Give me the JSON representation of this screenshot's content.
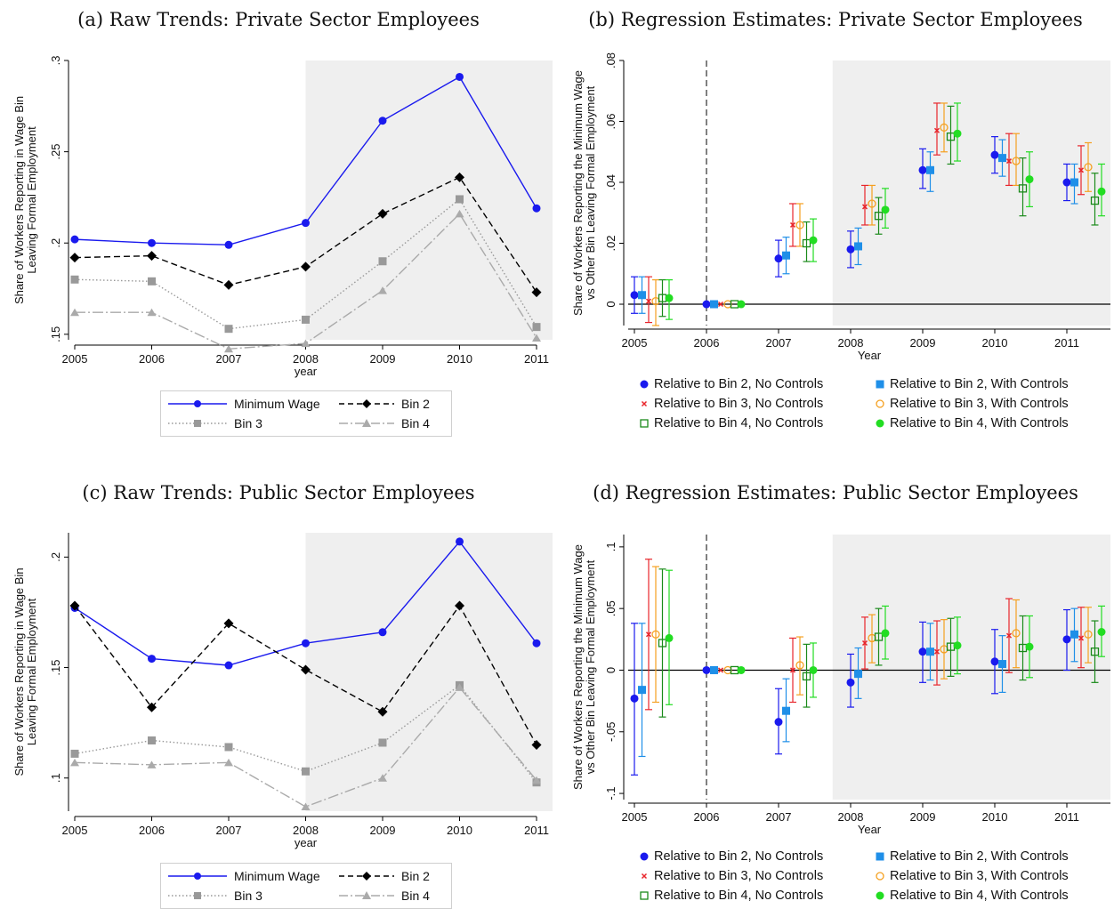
{
  "chart_data": [
    {
      "id": "a",
      "type": "line",
      "title": "(a) Raw Trends: Private Sector Employees",
      "xlabel": "year",
      "ylabel": "Share of Workers Reporting in Wage Bin\nLeaving Formal Employment",
      "x": [
        2005,
        2006,
        2007,
        2008,
        2009,
        2010,
        2011
      ],
      "xlim": [
        2005,
        2011
      ],
      "ylim": [
        0.147,
        0.3
      ],
      "yticks": [
        0.15,
        0.2,
        0.25,
        0.3
      ],
      "ytick_labels": [
        ".15",
        ".2",
        ".25",
        ".3"
      ],
      "shaded_from": 2008,
      "series": [
        {
          "name": "Minimum Wage",
          "color": "#1a1aee",
          "marker": "circle",
          "dash": "solid",
          "values": [
            0.202,
            0.2,
            0.199,
            0.211,
            0.267,
            0.291,
            0.219
          ]
        },
        {
          "name": "Bin 2",
          "color": "#000000",
          "marker": "diamond",
          "dash": "dashed",
          "values": [
            0.192,
            0.193,
            0.177,
            0.187,
            0.216,
            0.236,
            0.173
          ]
        },
        {
          "name": "Bin 3",
          "color": "#999999",
          "marker": "square",
          "dash": "dotted",
          "values": [
            0.18,
            0.179,
            0.153,
            0.158,
            0.19,
            0.224,
            0.154
          ]
        },
        {
          "name": "Bin 4",
          "color": "#aaaaaa",
          "marker": "triangle",
          "dash": "longdash",
          "values": [
            0.162,
            0.162,
            0.142,
            0.145,
            0.174,
            0.216,
            0.148
          ]
        }
      ]
    },
    {
      "id": "b",
      "type": "scatter",
      "title": "(b) Regression Estimates: Private Sector Employees",
      "xlabel": "Year",
      "ylabel": "Share of Workers Reporting the Minimum Wage\nvs Other Bin Leaving Formal Employment",
      "x": [
        2005,
        2006,
        2007,
        2008,
        2009,
        2010,
        2011
      ],
      "ylim": [
        -0.007,
        0.08
      ],
      "yticks": [
        0,
        0.02,
        0.04,
        0.06,
        0.08
      ],
      "ytick_labels": [
        "0",
        ".02",
        ".04",
        ".06",
        ".08"
      ],
      "event_line": 2006,
      "shaded_from": 2007.75,
      "series": [
        {
          "name": "Relative to Bin 2, No Controls",
          "color": "#1a1aee",
          "marker": "circle",
          "values": [
            0.003,
            0,
            0.015,
            0.018,
            0.044,
            0.049,
            0.04
          ],
          "ci_low": [
            -0.003,
            0,
            0.009,
            0.012,
            0.038,
            0.043,
            0.034
          ],
          "ci_high": [
            0.009,
            0,
            0.021,
            0.024,
            0.051,
            0.055,
            0.046
          ]
        },
        {
          "name": "Relative to Bin 2, With Controls",
          "color": "#1f8fe8",
          "marker": "square",
          "values": [
            0.003,
            0,
            0.016,
            0.019,
            0.044,
            0.048,
            0.04
          ],
          "ci_low": [
            -0.003,
            0,
            0.01,
            0.013,
            0.037,
            0.042,
            0.033
          ],
          "ci_high": [
            0.009,
            0,
            0.022,
            0.025,
            0.05,
            0.054,
            0.046
          ]
        },
        {
          "name": "Relative to Bin 3, No Controls",
          "color": "#e8252b",
          "marker": "x",
          "values": [
            0.001,
            0,
            0.026,
            0.032,
            0.057,
            0.047,
            0.044
          ],
          "ci_low": [
            -0.006,
            0,
            0.019,
            0.026,
            0.049,
            0.039,
            0.036
          ],
          "ci_high": [
            0.009,
            0,
            0.033,
            0.039,
            0.066,
            0.056,
            0.052
          ]
        },
        {
          "name": "Relative to Bin 3, With Controls",
          "color": "#f5a020",
          "marker": "circle-open",
          "values": [
            0.001,
            0,
            0.026,
            0.033,
            0.058,
            0.047,
            0.045
          ],
          "ci_low": [
            -0.007,
            0,
            0.019,
            0.026,
            0.05,
            0.039,
            0.037
          ],
          "ci_high": [
            0.008,
            0,
            0.033,
            0.039,
            0.066,
            0.056,
            0.053
          ]
        },
        {
          "name": "Relative to Bin 4, No Controls",
          "color": "#1a8a1a",
          "marker": "square-open",
          "values": [
            0.002,
            0,
            0.02,
            0.029,
            0.055,
            0.038,
            0.034
          ],
          "ci_low": [
            -0.004,
            0,
            0.014,
            0.023,
            0.046,
            0.029,
            0.026
          ],
          "ci_high": [
            0.008,
            0,
            0.027,
            0.035,
            0.065,
            0.048,
            0.043
          ]
        },
        {
          "name": "Relative to Bin 4, With Controls",
          "color": "#22dd22",
          "marker": "circle",
          "values": [
            0.002,
            0,
            0.021,
            0.031,
            0.056,
            0.041,
            0.037
          ],
          "ci_low": [
            -0.005,
            0,
            0.014,
            0.025,
            0.047,
            0.032,
            0.029
          ],
          "ci_high": [
            0.008,
            0,
            0.028,
            0.038,
            0.066,
            0.05,
            0.046
          ]
        }
      ]
    },
    {
      "id": "c",
      "type": "line",
      "title": "(c) Raw Trends: Public Sector Employees",
      "xlabel": "year",
      "ylabel": "Share of Workers Reporting in Wage Bin\nLeaving Formal Employment",
      "x": [
        2005,
        2006,
        2007,
        2008,
        2009,
        2010,
        2011
      ],
      "xlim": [
        2005,
        2011
      ],
      "ylim": [
        0.085,
        0.211
      ],
      "yticks": [
        0.1,
        0.15,
        0.2
      ],
      "ytick_labels": [
        ".1",
        ".15",
        ".2"
      ],
      "shaded_from": 2008,
      "series": [
        {
          "name": "Minimum Wage",
          "color": "#1a1aee",
          "marker": "circle",
          "dash": "solid",
          "values": [
            0.177,
            0.154,
            0.151,
            0.161,
            0.166,
            0.207,
            0.161
          ]
        },
        {
          "name": "Bin 2",
          "color": "#000000",
          "marker": "diamond",
          "dash": "dashed",
          "values": [
            0.178,
            0.132,
            0.17,
            0.149,
            0.13,
            0.178,
            0.115
          ]
        },
        {
          "name": "Bin 3",
          "color": "#999999",
          "marker": "square",
          "dash": "dotted",
          "values": [
            0.111,
            0.117,
            0.114,
            0.103,
            0.116,
            0.142,
            0.098
          ]
        },
        {
          "name": "Bin 4",
          "color": "#aaaaaa",
          "marker": "triangle",
          "dash": "longdash",
          "values": [
            0.107,
            0.106,
            0.107,
            0.087,
            0.1,
            0.141,
            0.099
          ]
        }
      ]
    },
    {
      "id": "d",
      "type": "scatter",
      "title": "(d) Regression Estimates: Public Sector Employees",
      "xlabel": "Year",
      "ylabel": "Share of Workers Reporting the Minimum Wage\nvs Other Bin Leaving Formal Employment",
      "x": [
        2005,
        2006,
        2007,
        2008,
        2009,
        2010,
        2011
      ],
      "ylim": [
        -0.105,
        0.11
      ],
      "yticks": [
        -0.1,
        -0.05,
        0,
        0.05,
        0.1
      ],
      "ytick_labels": [
        "-.1",
        "-.05",
        "0",
        ".05",
        ".1"
      ],
      "event_line": 2006,
      "shaded_from": 2007.75,
      "series": [
        {
          "name": "Relative to Bin 2, No Controls",
          "color": "#1a1aee",
          "marker": "circle",
          "values": [
            -0.023,
            0,
            -0.042,
            -0.01,
            0.015,
            0.007,
            0.025
          ],
          "ci_low": [
            -0.085,
            0,
            -0.068,
            -0.03,
            -0.01,
            -0.019,
            0.0
          ],
          "ci_high": [
            0.038,
            0,
            -0.015,
            0.013,
            0.039,
            0.033,
            0.049
          ]
        },
        {
          "name": "Relative to Bin 2, With Controls",
          "color": "#1f8fe8",
          "marker": "square",
          "values": [
            -0.016,
            0,
            -0.033,
            -0.003,
            0.015,
            0.005,
            0.029
          ],
          "ci_low": [
            -0.07,
            0,
            -0.058,
            -0.023,
            -0.008,
            -0.018,
            0.007
          ],
          "ci_high": [
            0.038,
            0,
            -0.007,
            0.018,
            0.038,
            0.028,
            0.05
          ]
        },
        {
          "name": "Relative to Bin 3, No Controls",
          "color": "#e8252b",
          "marker": "x",
          "values": [
            0.029,
            0,
            0.0,
            0.022,
            0.015,
            0.028,
            0.026
          ],
          "ci_low": [
            -0.032,
            0,
            -0.026,
            0.001,
            -0.012,
            -0.002,
            0.002
          ],
          "ci_high": [
            0.09,
            0,
            0.026,
            0.043,
            0.04,
            0.058,
            0.051
          ]
        },
        {
          "name": "Relative to Bin 3, With Controls",
          "color": "#f5a020",
          "marker": "circle-open",
          "values": [
            0.029,
            0,
            0.004,
            0.026,
            0.017,
            0.03,
            0.029
          ],
          "ci_low": [
            -0.026,
            0,
            -0.02,
            0.006,
            -0.007,
            0.002,
            0.006
          ],
          "ci_high": [
            0.084,
            0,
            0.027,
            0.045,
            0.041,
            0.057,
            0.051
          ]
        },
        {
          "name": "Relative to Bin 4, No Controls",
          "color": "#1a8a1a",
          "marker": "square-open",
          "values": [
            0.022,
            0,
            -0.005,
            0.027,
            0.019,
            0.018,
            0.015
          ],
          "ci_low": [
            -0.038,
            0,
            -0.03,
            0.004,
            -0.005,
            -0.008,
            -0.01
          ],
          "ci_high": [
            0.082,
            0,
            0.021,
            0.05,
            0.042,
            0.044,
            0.04
          ]
        },
        {
          "name": "Relative to Bin 4, With Controls",
          "color": "#22dd22",
          "marker": "circle",
          "values": [
            0.026,
            0,
            0.0,
            0.03,
            0.02,
            0.019,
            0.031
          ],
          "ci_low": [
            -0.028,
            0,
            -0.022,
            0.009,
            -0.003,
            -0.006,
            0.011
          ],
          "ci_high": [
            0.081,
            0,
            0.022,
            0.052,
            0.043,
            0.044,
            0.052
          ]
        }
      ]
    }
  ]
}
